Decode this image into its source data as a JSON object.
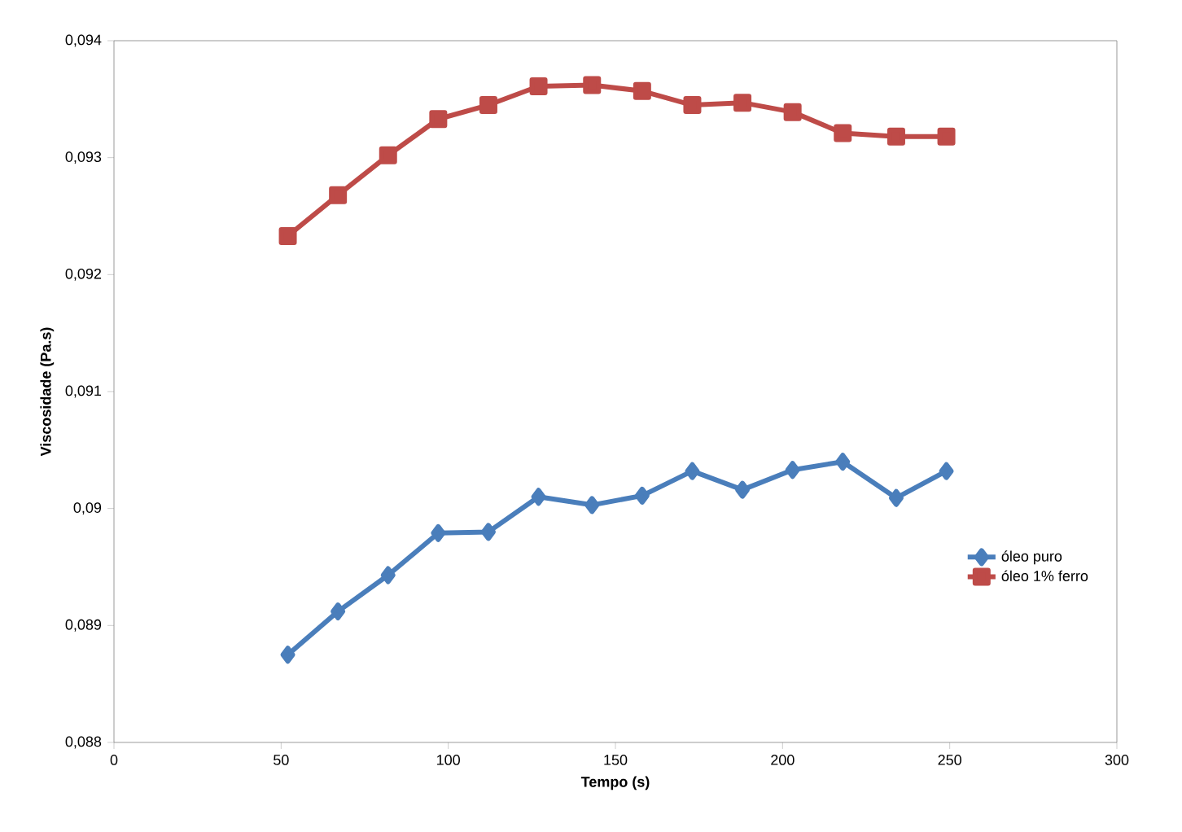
{
  "chart_data": {
    "type": "line",
    "xlabel": "Tempo (s)",
    "ylabel": "Viscosidade (Pa.s)",
    "xlim": [
      0,
      300
    ],
    "xticks": [
      0,
      50,
      100,
      150,
      200,
      250,
      300
    ],
    "ylim": [
      0.088,
      0.094
    ],
    "yticks": [
      {
        "value": 0.088,
        "label": "0,088"
      },
      {
        "value": 0.089,
        "label": "0,089"
      },
      {
        "value": 0.09,
        "label": "0,09"
      },
      {
        "value": 0.091,
        "label": "0,091"
      },
      {
        "value": 0.092,
        "label": "0,092"
      },
      {
        "value": 0.093,
        "label": "0,093"
      },
      {
        "value": 0.094,
        "label": "0,094"
      }
    ],
    "legend": "right",
    "x": [
      52,
      67,
      82,
      97,
      112,
      127,
      143,
      158,
      173,
      188,
      203,
      218,
      234,
      249
    ],
    "series": [
      {
        "name": "óleo puro",
        "color": "#4a7ebb",
        "marker": "diamond",
        "values": [
          0.08875,
          0.08912,
          0.08943,
          0.08979,
          0.0898,
          0.0901,
          0.09003,
          0.09011,
          0.09032,
          0.09016,
          0.09033,
          0.0904,
          0.09009,
          0.09032
        ]
      },
      {
        "name": "óleo 1% ferro",
        "color": "#be4b48",
        "marker": "square",
        "values": [
          0.09233,
          0.09268,
          0.09302,
          0.09333,
          0.09345,
          0.09361,
          0.09362,
          0.09357,
          0.09345,
          0.09347,
          0.09339,
          0.09321,
          0.09318,
          0.09318
        ]
      }
    ]
  }
}
